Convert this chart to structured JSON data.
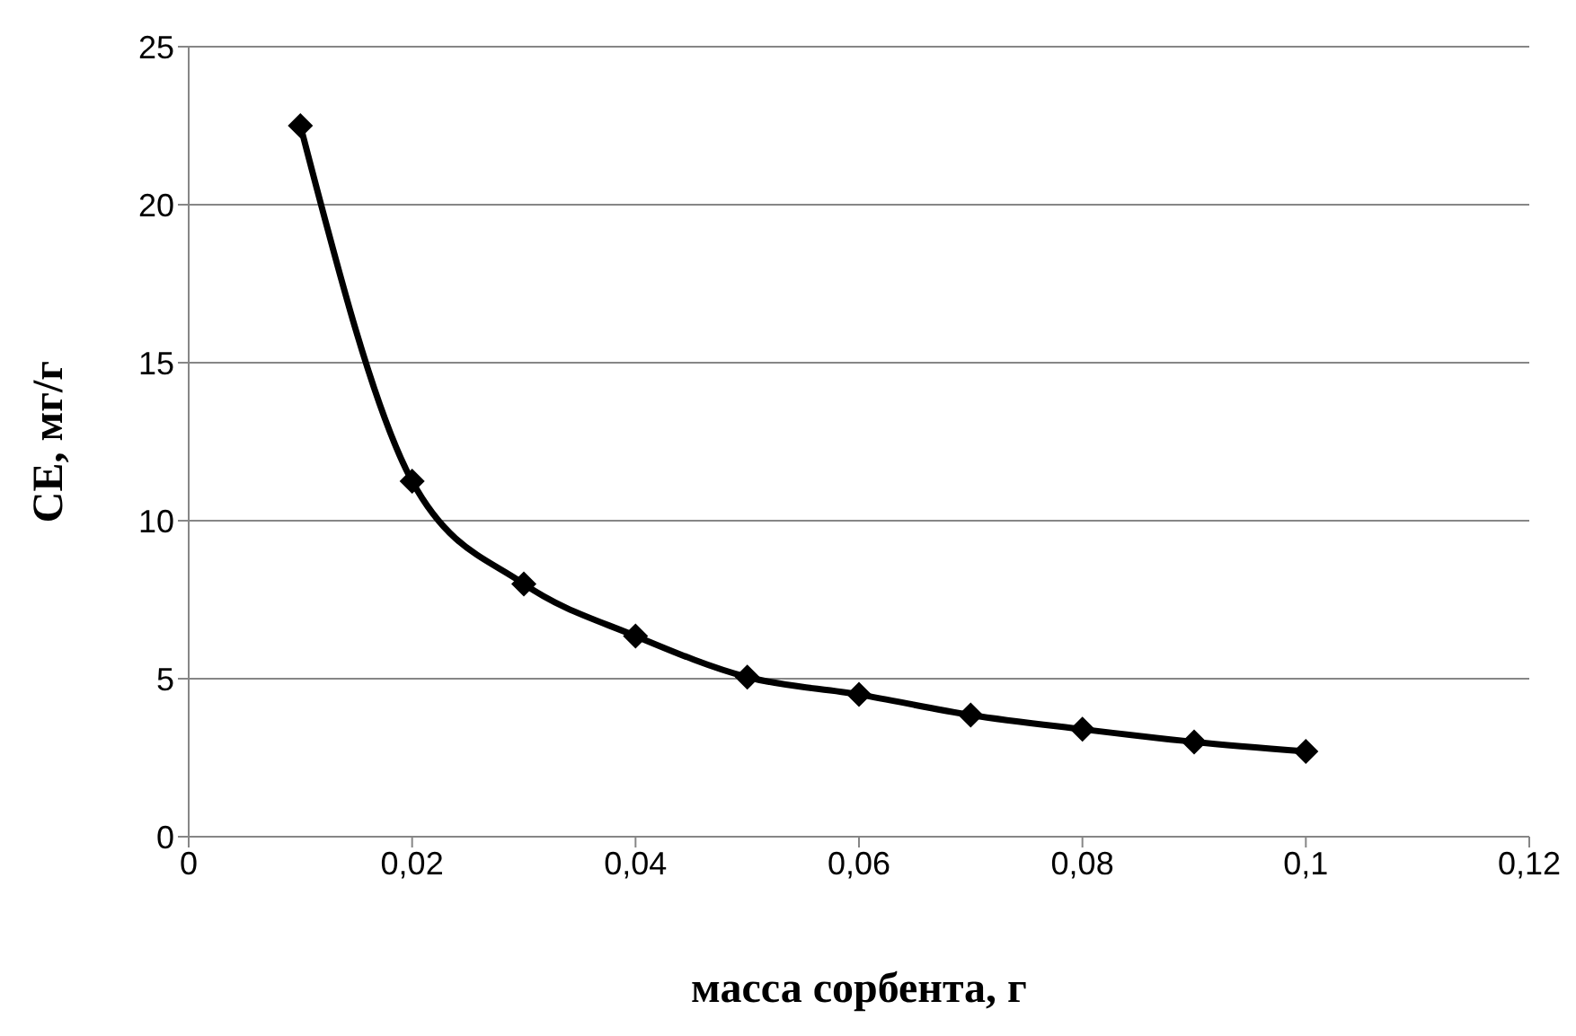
{
  "chart_data": {
    "type": "line",
    "xlabel": "масса сорбента, г",
    "ylabel": "CE, мг/г",
    "x": [
      0.01,
      0.02,
      0.03,
      0.04,
      0.05,
      0.06,
      0.07,
      0.08,
      0.09,
      0.1
    ],
    "series": [
      {
        "color": "#000000",
        "values": [
          22.5,
          11.25,
          8.0,
          6.35,
          5.05,
          4.5,
          3.85,
          3.4,
          3.0,
          2.7
        ]
      }
    ],
    "xlim": [
      0,
      0.12
    ],
    "xticks": [
      0,
      {
        "value": 0.02,
        "label": "0,02"
      },
      {
        "value": 0.04,
        "label": "0,04"
      },
      {
        "value": 0.06,
        "label": "0,06"
      },
      {
        "value": 0.08,
        "label": "0,08"
      },
      {
        "value": 0.1,
        "label": "0,1"
      },
      {
        "value": 0.12,
        "label": "0,12"
      }
    ],
    "ylim": [
      0,
      25
    ],
    "yticks": [
      0,
      5,
      10,
      15,
      20,
      25
    ],
    "grid": "y",
    "legend": false,
    "marker": "diamond",
    "line_style": "solid"
  }
}
